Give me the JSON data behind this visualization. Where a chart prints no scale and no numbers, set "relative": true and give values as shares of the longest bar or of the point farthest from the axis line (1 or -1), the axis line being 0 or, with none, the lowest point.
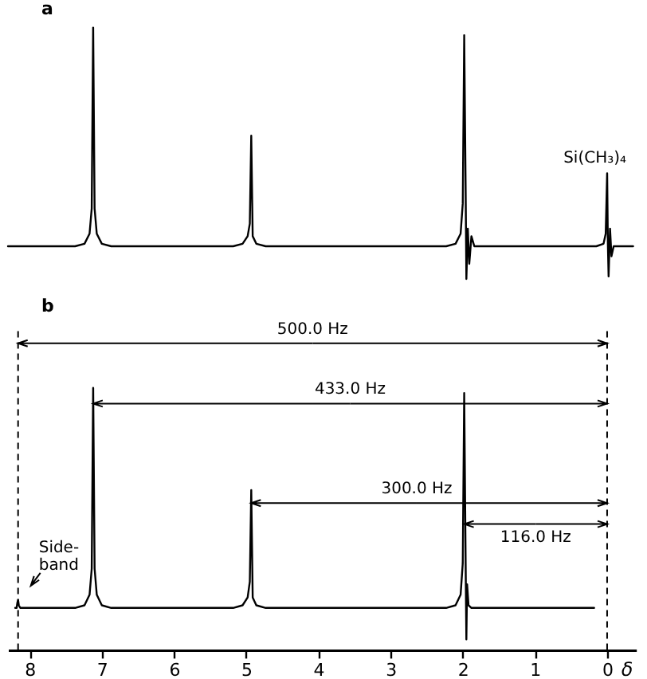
{
  "chart_data": [
    {
      "type": "line",
      "title": "a",
      "xlim": [
        8.3,
        -0.4
      ],
      "tick_labels": false,
      "relative": true,
      "x": [
        8.3,
        7.37,
        7.24,
        7.17,
        7.14,
        7.12,
        7.1,
        7.07,
        7.0,
        6.87,
        5.18,
        5.05,
        4.98,
        4.95,
        4.93,
        4.91,
        4.86,
        4.73,
        2.23,
        2.1,
        2.03,
        2.0,
        1.98,
        1.96,
        1.95,
        1.93,
        1.91,
        1.88,
        1.84,
        0.15,
        0.05,
        0.02,
        0,
        -0.01,
        -0.02,
        -0.04,
        -0.06,
        -0.09,
        -0.36
      ],
      "series": [
        {
          "color": "#000000",
          "values": [
            0.13,
            0.13,
            0.14,
            0.18,
            0.28,
            1,
            0.28,
            0.18,
            0.14,
            0.13,
            0.13,
            0.14,
            0.17,
            0.22,
            0.57,
            0.17,
            0.14,
            0.13,
            0.13,
            0.14,
            0.18,
            0.3,
            0.97,
            0.35,
            0,
            0.2,
            0.06,
            0.17,
            0.13,
            0.13,
            0.14,
            0.18,
            0.42,
            0.14,
            0.01,
            0.2,
            0.09,
            0.13,
            0.13
          ]
        }
      ],
      "annotations": [
        {
          "text": "Si(CH₃)₄",
          "x": 0,
          "y": 0.42
        }
      ]
    },
    {
      "type": "line",
      "title": "b",
      "xlabel": "δ",
      "xlim": [
        8.3,
        -0.4
      ],
      "xticks": [
        8,
        7,
        6,
        5,
        4,
        3,
        2,
        1,
        0
      ],
      "tick_labels": "x",
      "relative": true,
      "x": [
        8.2,
        8.18,
        8.17,
        8.16,
        8.15,
        8.13,
        7.37,
        7.24,
        7.17,
        7.14,
        7.12,
        7.1,
        7.07,
        7.0,
        6.87,
        5.18,
        5.05,
        4.98,
        4.95,
        4.93,
        4.91,
        4.86,
        4.73,
        2.23,
        2.1,
        2.03,
        2.0,
        1.98,
        1.96,
        1.95,
        1.94,
        1.92,
        1.88,
        0.18
      ],
      "series": [
        {
          "color": "#000000",
          "values": [
            0.16,
            0.16,
            0.18,
            0.19,
            0.17,
            0.16,
            0.16,
            0.17,
            0.21,
            0.31,
            1,
            0.31,
            0.21,
            0.17,
            0.16,
            0.16,
            0.17,
            0.2,
            0.26,
            0.61,
            0.2,
            0.17,
            0.16,
            0.16,
            0.17,
            0.21,
            0.33,
            0.98,
            0.33,
            0.04,
            0.25,
            0.17,
            0.16,
            0.16
          ]
        }
      ],
      "ref_lines": [
        {
          "axis": "x",
          "value": 8.16,
          "line_style": "dashed"
        },
        {
          "axis": "x",
          "value": 0,
          "line_style": "dashed"
        }
      ],
      "annotations": [
        {
          "text": "Side-\nband",
          "x": 8.16,
          "y": 0.19
        },
        {
          "text": "500.0 Hz",
          "x": 8.16,
          "y": 1.17
        },
        {
          "text": "433.0 Hz",
          "x": 7.12,
          "y": 0.94
        },
        {
          "text": "300.0 Hz",
          "x": 4.93,
          "y": 0.56
        },
        {
          "text": "116.0 Hz",
          "x": 1.98,
          "y": 0.48
        }
      ]
    }
  ]
}
